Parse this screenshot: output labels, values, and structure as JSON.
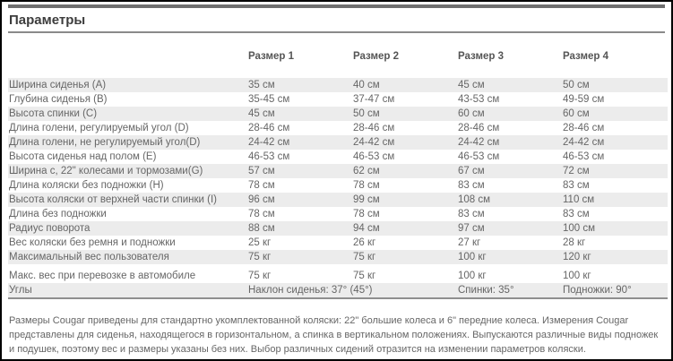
{
  "title": "Параметры",
  "colors": {
    "row_shade": "#ececec",
    "rule": "#8a8a8a",
    "title_text": "#3d3d3d",
    "body_text": "#666666",
    "outer_border": "#000000"
  },
  "table": {
    "col_headers": [
      "Размер 1",
      "Размер 2",
      "Размер 3",
      "Размер 4"
    ],
    "rows": [
      {
        "label": "Ширина сиденья (A)",
        "values": [
          "35 см",
          "40 см",
          "45 см",
          "50 см"
        ]
      },
      {
        "label": "Глубина сиденья (B)",
        "values": [
          "35-45 см",
          "37-47 см",
          "43-53 см",
          "49-59 см"
        ]
      },
      {
        "label": "Высота спинки (C)",
        "values": [
          "45 см",
          "50 см",
          "60 см",
          "60 см"
        ]
      },
      {
        "label": "Длина голени, регулируемый угол (D)",
        "values": [
          "28-46 см",
          "28-46 см",
          "28-46 см",
          "28-46 см"
        ]
      },
      {
        "label": "Длина голени, не регулируемый угол(D)",
        "values": [
          "24-42 см",
          "24-42 см",
          "24-42 см",
          "24-42 см"
        ]
      },
      {
        "label": "Высота сиденья над полом (E)",
        "values": [
          "46-53 см",
          "46-53 см",
          "46-53 см",
          "46-53 см"
        ]
      },
      {
        "label": "Ширина с, 22\" колесами и тормозами(G)",
        "values": [
          "57 см",
          "62 см",
          "67 см",
          "72 см"
        ]
      },
      {
        "label": "Длина коляски без подножки (H)",
        "values": [
          "78 см",
          "78 см",
          "83 см",
          "83 см"
        ]
      },
      {
        "label": "Высота коляски от верхней части спинки (I)",
        "values": [
          "96 см",
          "99 см",
          "108 см",
          "110 см"
        ]
      },
      {
        "label": "Длина без подножки",
        "values": [
          "78 см",
          "78 см",
          "83 см",
          "83 см"
        ]
      },
      {
        "label": "Радиус поворота",
        "values": [
          "88 см",
          "94 см",
          "97 см",
          "100 см"
        ]
      },
      {
        "label": "Вес коляски без ремня и подножки",
        "values": [
          "25 кг",
          "26 кг",
          "27 кг",
          "28 кг"
        ]
      },
      {
        "label": "Максимальный вес пользователя",
        "values": [
          "75 кг",
          "75 кг",
          "100 кг",
          "120 кг"
        ]
      },
      {
        "label": "Макс. вес при перевозке в автомобиле",
        "values": [
          "75 кг",
          "75 кг",
          "100 кг",
          "100 кг"
        ],
        "gap_before": true
      }
    ],
    "angles_row": {
      "label": "Углы",
      "seat_tilt": "Наклон сиденья: 37° (45°)",
      "back": "Спинки: 35°",
      "footrests": "Подножки: 90°"
    }
  },
  "footnote": "Размеры Cougar приведены для стандартно укомплектованной коляски: 22\" большие колеса и 6\" передние колеса. Измерения Cougar представлены для сиденья, находящегося в горизонтальном, а спинка в вертикальном положениях. Выпускаются различные виды подножек и подушек, поэтому вес и размеры указаны без них. Выбор различных сидений отразится на изменении параметров коляски."
}
